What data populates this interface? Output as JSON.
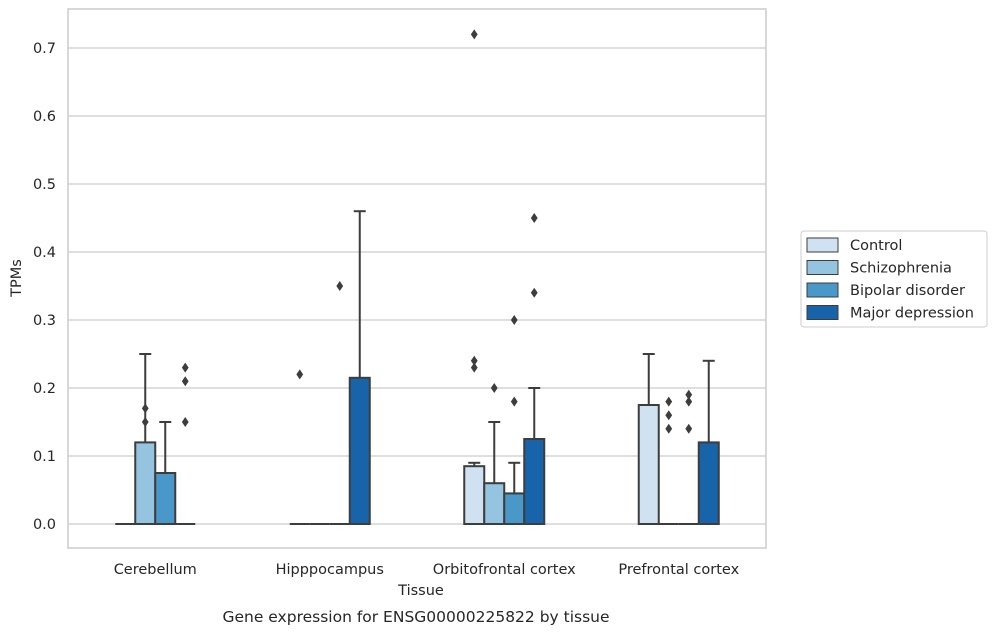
{
  "chart_data": {
    "type": "box",
    "xlabel": "Tissue",
    "ylabel": "TPMs",
    "caption": "Gene expression for ENSG00000225822 by tissue",
    "ylim": [
      -0.035,
      0.76
    ],
    "yticks": [
      "0.0",
      "0.1",
      "0.2",
      "0.3",
      "0.4",
      "0.5",
      "0.6",
      "0.7"
    ],
    "grid": "horizontal",
    "legend_position": "right",
    "categories": [
      "Cerebellum",
      "Hipppocampus",
      "Orbitofrontal cortex",
      "Prefrontal cortex"
    ],
    "series": [
      {
        "name": "Control",
        "color": "#d0e1f2",
        "boxes": [
          {
            "q1": 0,
            "median": 0,
            "q3": 0,
            "whisker_low": 0,
            "whisker_high": 0,
            "outliers": []
          },
          {
            "q1": 0,
            "median": 0,
            "q3": 0,
            "whisker_low": 0,
            "whisker_high": 0,
            "outliers": [
              0.22
            ]
          },
          {
            "q1": 0,
            "median": 0,
            "q3": 0.085,
            "whisker_low": 0,
            "whisker_high": 0.09,
            "outliers": [
              0.23,
              0.24,
              0.72
            ]
          },
          {
            "q1": 0,
            "median": 0,
            "q3": 0.175,
            "whisker_low": 0,
            "whisker_high": 0.25,
            "outliers": []
          }
        ]
      },
      {
        "name": "Schizophrenia",
        "color": "#94c4df",
        "boxes": [
          {
            "q1": 0,
            "median": 0,
            "q3": 0.12,
            "whisker_low": 0,
            "whisker_high": 0.25,
            "outliers": [
              0.15,
              0.17
            ]
          },
          {
            "q1": 0,
            "median": 0,
            "q3": 0,
            "whisker_low": 0,
            "whisker_high": 0,
            "outliers": []
          },
          {
            "q1": 0,
            "median": 0,
            "q3": 0.06,
            "whisker_low": 0,
            "whisker_high": 0.15,
            "outliers": [
              0.2
            ]
          },
          {
            "q1": 0,
            "median": 0,
            "q3": 0,
            "whisker_low": 0,
            "whisker_high": 0,
            "outliers": [
              0.14,
              0.16,
              0.18
            ]
          }
        ]
      },
      {
        "name": "Bipolar disorder",
        "color": "#4a98c9",
        "boxes": [
          {
            "q1": 0,
            "median": 0,
            "q3": 0.075,
            "whisker_low": 0,
            "whisker_high": 0.15,
            "outliers": []
          },
          {
            "q1": 0,
            "median": 0,
            "q3": 0,
            "whisker_low": 0,
            "whisker_high": 0,
            "outliers": [
              0.35
            ]
          },
          {
            "q1": 0,
            "median": 0,
            "q3": 0.045,
            "whisker_low": 0,
            "whisker_high": 0.09,
            "outliers": [
              0.18,
              0.3
            ]
          },
          {
            "q1": 0,
            "median": 0,
            "q3": 0,
            "whisker_low": 0,
            "whisker_high": 0,
            "outliers": [
              0.14,
              0.18,
              0.19
            ]
          }
        ]
      },
      {
        "name": "Major depression",
        "color": "#1764ab",
        "boxes": [
          {
            "q1": 0,
            "median": 0,
            "q3": 0,
            "whisker_low": 0,
            "whisker_high": 0,
            "outliers": [
              0.15,
              0.21,
              0.23
            ]
          },
          {
            "q1": 0,
            "median": 0,
            "q3": 0.215,
            "whisker_low": 0,
            "whisker_high": 0.46,
            "outliers": []
          },
          {
            "q1": 0,
            "median": 0,
            "q3": 0.125,
            "whisker_low": 0,
            "whisker_high": 0.2,
            "outliers": [
              0.34,
              0.45
            ]
          },
          {
            "q1": 0,
            "median": 0,
            "q3": 0.12,
            "whisker_low": 0,
            "whisker_high": 0.24,
            "outliers": []
          }
        ]
      }
    ]
  }
}
